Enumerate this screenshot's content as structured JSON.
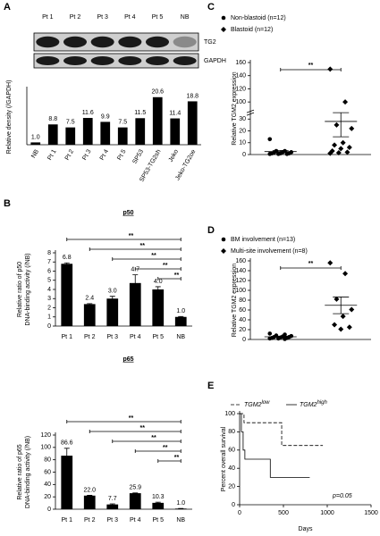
{
  "chart_data": [
    {
      "type": "bar",
      "panel": "A",
      "blot_lanes": [
        "Pt 1",
        "Pt 2",
        "Pt 3",
        "Pt 4",
        "Pt 5",
        "NB"
      ],
      "blot_bands": [
        "TG2",
        "GAPDH"
      ],
      "ylabel": [
        "Relative density (/GAPDH)"
      ],
      "categories": [
        "NB",
        "Pt 1",
        "Pt 2",
        "Pt 3",
        "Pt 4",
        "Pt 5",
        "SP53",
        "SP53-TG2sh",
        "Jeko",
        "Jeko-TG2oe"
      ],
      "values": [
        1.0,
        8.8,
        7.5,
        11.6,
        9.9,
        7.5,
        11.5,
        20.6,
        11.4,
        18.8
      ],
      "value_labels": [
        "1.0",
        "8.8",
        "7.5",
        "11.6",
        "9.9",
        "7.5",
        "11.5",
        "20.6",
        "11.4",
        "18.8"
      ],
      "color": "#000000",
      "ylim": [
        0,
        24
      ]
    },
    {
      "type": "bar",
      "panel": "B",
      "title": "p50",
      "ylabel": [
        "Relative ratio of p50",
        "DNA-binding activity (/NB)"
      ],
      "categories": [
        "Pt 1",
        "Pt 2",
        "Pt 3",
        "Pt 4",
        "Pt 5",
        "NB"
      ],
      "values": [
        6.8,
        2.4,
        3.0,
        4.7,
        4.0,
        1.0
      ],
      "errors": [
        0.1,
        0.05,
        0.25,
        0.9,
        0.3,
        0.05
      ],
      "value_labels": [
        "6.8",
        "2.4",
        "3.0",
        "4.7",
        "4.0",
        "1.0"
      ],
      "color": "#000000",
      "ylim": [
        0,
        8
      ],
      "yticks": [
        0,
        1,
        2,
        3,
        4,
        5,
        6,
        7,
        8
      ],
      "brackets": [
        {
          "text": "**",
          "from": "Pt 1",
          "to": "NB"
        },
        {
          "text": "**",
          "from": "Pt 2",
          "to": "NB"
        },
        {
          "text": "**",
          "from": "Pt 3",
          "to": "NB"
        },
        {
          "text": "**",
          "from": "Pt 4",
          "to": "NB"
        },
        {
          "text": "**",
          "from": "Pt 5",
          "to": "NB"
        }
      ]
    },
    {
      "type": "bar",
      "title": "p65",
      "ylabel": [
        "Relative ratio of p65",
        "DNA-binding activity (/NB)"
      ],
      "categories": [
        "Pt 1",
        "Pt 2",
        "Pt 3",
        "Pt 4",
        "Pt 5",
        "NB"
      ],
      "values": [
        86.6,
        22.0,
        7.7,
        25.9,
        10.3,
        1.0
      ],
      "errors": [
        12,
        0.5,
        1,
        0.5,
        1,
        0.2
      ],
      "value_labels": [
        "86.6",
        "22.0",
        "7.7",
        "25.9",
        "10.3",
        "1.0"
      ],
      "color": "#000000",
      "ylim": [
        0,
        120
      ],
      "yticks": [
        0,
        20,
        40,
        60,
        80,
        100,
        120
      ],
      "brackets": [
        {
          "text": "**",
          "from": "Pt 1",
          "to": "NB"
        },
        {
          "text": "**",
          "from": "Pt 2",
          "to": "NB"
        },
        {
          "text": "**",
          "from": "Pt 3",
          "to": "NB"
        },
        {
          "text": "**",
          "from": "Pt 4",
          "to": "NB"
        },
        {
          "text": "**",
          "from": "Pt 5",
          "to": "NB"
        }
      ]
    },
    {
      "type": "scatter",
      "panel": "C",
      "ylabel": "Relative TGM2 expression",
      "ylim": [
        0,
        160
      ],
      "yticks": [
        0,
        10,
        20,
        30,
        100,
        120,
        140,
        160
      ],
      "ybreak": [
        35,
        90
      ],
      "significance": "**",
      "series": [
        {
          "name": "Non-blastoid (n=12)",
          "marker": "circle",
          "color": "#000000",
          "values": [
            13,
            3,
            3,
            2,
            2,
            1.5,
            1,
            1,
            1,
            0.5,
            0.5,
            0.5
          ],
          "mean": 2.5,
          "error": 1
        },
        {
          "name": "Blastoid (n=12)",
          "marker": "diamond",
          "color": "#000000",
          "values": [
            150,
            100,
            25,
            22,
            10,
            8,
            6,
            5,
            3,
            2,
            1.5,
            1
          ],
          "mean": 28,
          "error": 13
        }
      ]
    },
    {
      "type": "scatter",
      "panel": "D",
      "ylabel": "Relative TGM2 expression",
      "ylim": [
        0,
        160
      ],
      "yticks": [
        0,
        20,
        40,
        60,
        80,
        100,
        120,
        140,
        160
      ],
      "significance": "**",
      "series": [
        {
          "name": "BM involvement (n=13)",
          "marker": "circle",
          "color": "#000000",
          "values": [
            12,
            10,
            8,
            7,
            6,
            5,
            5,
            4,
            3,
            3,
            2,
            2,
            1
          ],
          "mean": 5.5,
          "error": 1
        },
        {
          "name": "Multi-site involvement (n=8)",
          "marker": "diamond",
          "color": "#000000",
          "values": [
            156,
            134,
            82,
            61,
            47,
            30,
            25,
            21
          ],
          "mean": 69.5,
          "error": 17
        }
      ]
    },
    {
      "type": "survival",
      "panel": "E",
      "xlabel": "Days",
      "ylabel": "Percent overall survival",
      "xlim": [
        0,
        1500
      ],
      "xticks": [
        0,
        500,
        1000,
        1500
      ],
      "ylim": [
        0,
        100
      ],
      "yticks": [
        0,
        20,
        40,
        60,
        80,
        100
      ],
      "annotation": "p=0.05",
      "series": [
        {
          "name": "TGM2",
          "superscript": "low",
          "dash": true,
          "color": "#000000",
          "x": [
            0,
            50,
            480,
            950
          ],
          "values": [
            100,
            90,
            65,
            65
          ]
        },
        {
          "name": "TGM2",
          "superscript": "high",
          "dash": false,
          "color": "#000000",
          "x": [
            0,
            20,
            40,
            60,
            350,
            800
          ],
          "values": [
            100,
            80,
            60,
            50,
            30,
            30
          ]
        }
      ]
    }
  ]
}
